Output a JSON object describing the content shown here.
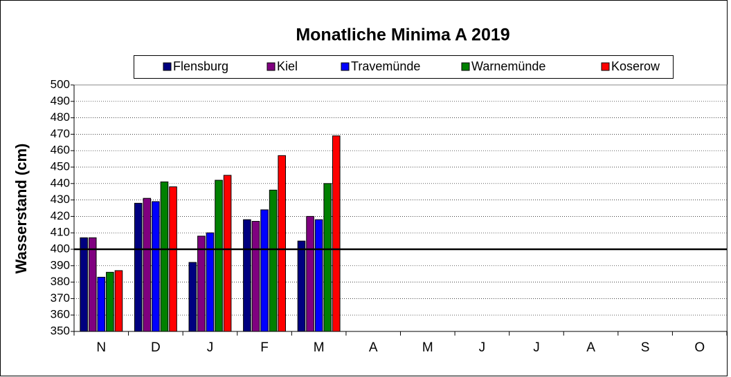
{
  "chart_data": {
    "type": "bar",
    "title": "Monatliche Minima A 2019",
    "y_label": "Wasserstand  (cm)",
    "categories": [
      "N",
      "D",
      "J",
      "F",
      "M",
      "A",
      "M",
      "J",
      "J",
      "A",
      "S",
      "O"
    ],
    "series": [
      {
        "name": "Flensburg",
        "color": "#000080",
        "values": [
          407,
          428,
          392,
          418,
          405,
          null,
          null,
          null,
          null,
          null,
          null,
          null
        ]
      },
      {
        "name": "Kiel",
        "color": "#800080",
        "values": [
          407,
          431,
          408,
          417,
          420,
          null,
          null,
          null,
          null,
          null,
          null,
          null
        ]
      },
      {
        "name": "Travemünde",
        "color": "#0000ff",
        "values": [
          383,
          429,
          410,
          424,
          418,
          null,
          null,
          null,
          null,
          null,
          null,
          null
        ]
      },
      {
        "name": "Warnemünde",
        "color": "#008000",
        "values": [
          386,
          441,
          442,
          436,
          440,
          null,
          null,
          null,
          null,
          null,
          null,
          null
        ]
      },
      {
        "name": "Koserow",
        "color": "#ff0000",
        "values": [
          387,
          438,
          445,
          457,
          469,
          null,
          null,
          null,
          null,
          null,
          null,
          null
        ]
      }
    ],
    "reference_line": 400,
    "ylim": [
      350,
      500
    ],
    "yticks": [
      350,
      360,
      370,
      380,
      390,
      400,
      410,
      420,
      430,
      440,
      450,
      460,
      470,
      480,
      490,
      500
    ],
    "grid": true,
    "legend": "top"
  }
}
